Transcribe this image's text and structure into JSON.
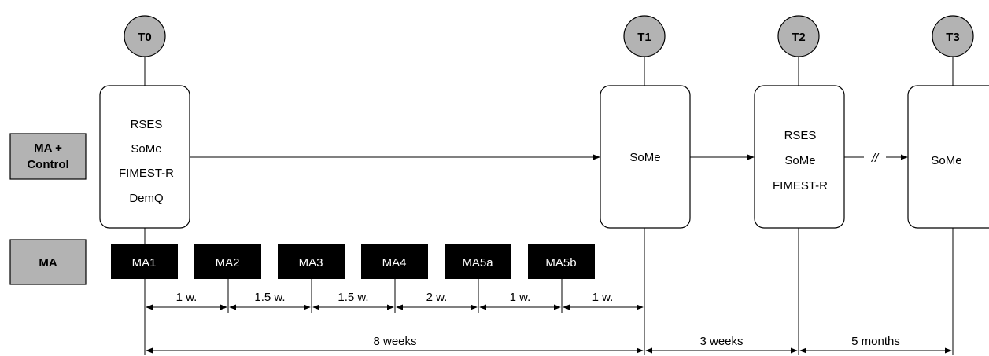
{
  "timepoints": [
    "T0",
    "T1",
    "T2",
    "T3"
  ],
  "groups": {
    "both": "MA +\nControl",
    "ma": "MA"
  },
  "boxes": {
    "t0": [
      "RSES",
      "SoMe",
      "FIMEST-R",
      "DemQ"
    ],
    "t1": [
      "SoMe"
    ],
    "t2": [
      "RSES",
      "SoMe",
      "FIMEST-R"
    ],
    "t3": [
      "SoMe"
    ]
  },
  "break_mark": "//",
  "sessions": [
    "MA1",
    "MA2",
    "MA3",
    "MA4",
    "MA5a",
    "MA5b"
  ],
  "intervals": [
    "1 w.",
    "1.5 w.",
    "1.5 w.",
    "2 w.",
    "1 w.",
    "1 w."
  ],
  "spans": [
    "8 weeks",
    "3 weeks",
    "5 months"
  ],
  "colors": {
    "circle_fill": "#b3b3b3",
    "group_fill": "#b3b3b3",
    "session_fill": "#000000",
    "line": "#000000"
  }
}
